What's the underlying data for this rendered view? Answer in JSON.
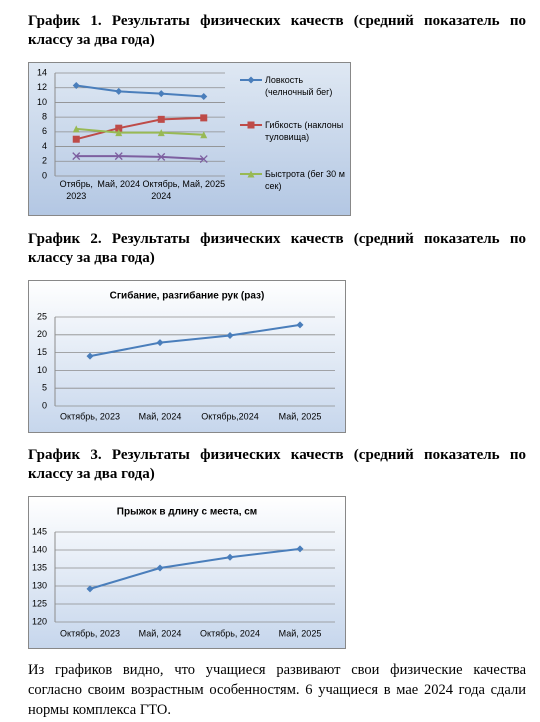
{
  "captions": [
    "График 1. Результаты физических качеств (средний показатель по классу за два года)",
    "График 2. Результаты физических качеств (средний показатель по классу за два года)",
    "График 3. Результаты физических качеств (средний показатель по классу за два года)"
  ],
  "chart_data": [
    {
      "type": "line",
      "categories": [
        "Отябрь, 2023",
        "Май, 2024",
        "Октябрь, 2024",
        "Май, 2025"
      ],
      "series": [
        {
          "name": "Ловкость (челночный бег)",
          "color": "#4a7ebb",
          "marker": "diamond",
          "values": [
            12.3,
            11.5,
            11.2,
            10.8
          ]
        },
        {
          "name": "Гибкость (наклоны туловища)",
          "color": "#be4b48",
          "marker": "square",
          "values": [
            5.0,
            6.5,
            7.7,
            7.9
          ]
        },
        {
          "name": "Быстрота (бег 30 м сек)",
          "color": "#98b954",
          "marker": "triangle",
          "values": [
            6.4,
            5.9,
            5.9,
            5.6
          ]
        },
        {
          "color": "#7d5fa0",
          "marker": "x",
          "values": [
            2.7,
            2.7,
            2.6,
            2.3
          ]
        }
      ],
      "ylim": [
        0,
        14
      ],
      "yticks": [
        0,
        2,
        4,
        6,
        8,
        10,
        12,
        14
      ],
      "grid": true,
      "legend": "right"
    },
    {
      "type": "line",
      "title": "Сгибание, разгибание рук (раз)",
      "categories": [
        "Октябрь, 2023",
        "Май, 2024",
        "Октябрь,2024",
        "Май, 2025"
      ],
      "series": [
        {
          "color": "#4a7ebb",
          "marker": "diamond",
          "values": [
            14,
            17.8,
            19.8,
            22.8
          ]
        }
      ],
      "ylim": [
        0,
        25
      ],
      "yticks": [
        0,
        5,
        10,
        15,
        20,
        25
      ],
      "grid": true
    },
    {
      "type": "line",
      "title": "Прыжок в длину с места, см",
      "categories": [
        "Октябрь, 2023",
        "Май, 2024",
        "Октябрь, 2024",
        "Май, 2025"
      ],
      "series": [
        {
          "color": "#4a7ebb",
          "marker": "diamond",
          "values": [
            129.2,
            135,
            138,
            140.3
          ]
        }
      ],
      "ylim": [
        120,
        145
      ],
      "yticks": [
        120,
        125,
        130,
        135,
        140,
        145
      ],
      "grid": true
    }
  ],
  "paragraph": "Из графиков видно, что учащиеся развивают свои физические качества согласно своим возрастным особенностям. 6 учащиеся в мае 2024 года сдали нормы комплекса ГТО."
}
